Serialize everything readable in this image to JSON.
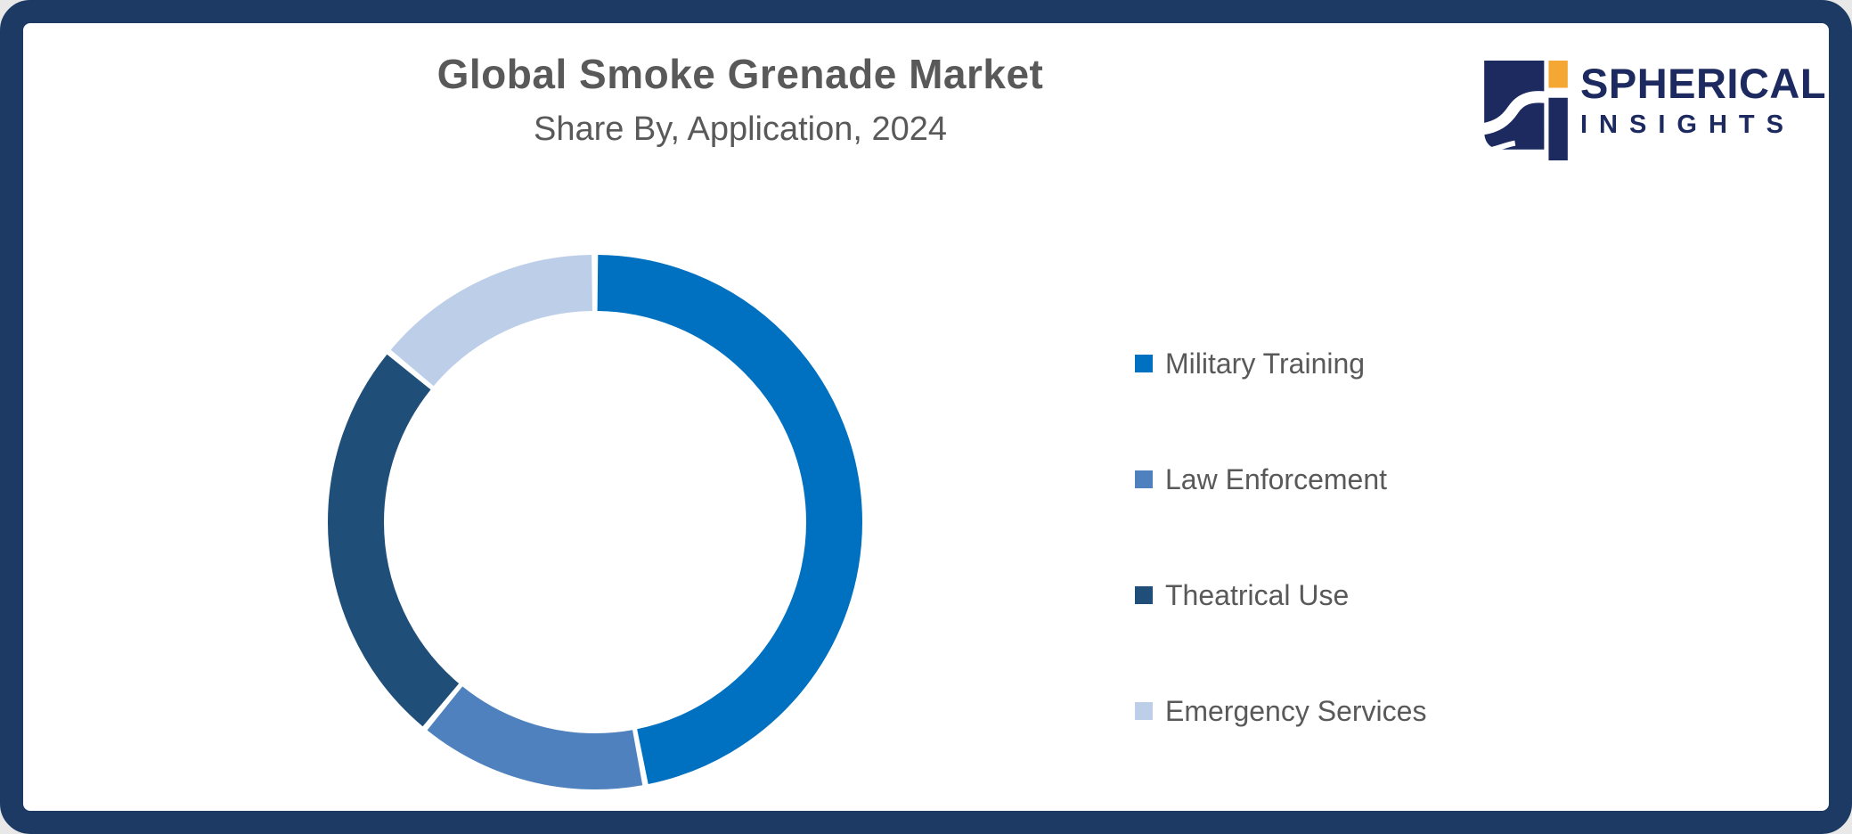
{
  "header": {
    "title": "Global Smoke Grenade Market",
    "subtitle": "Share By, Application, 2024"
  },
  "logo": {
    "name": "SPHERICAL",
    "tagline": "INSIGHTS",
    "navy": "#1c2a60",
    "orange": "#f5a733"
  },
  "colors": {
    "frame_border": "#1c3a63",
    "background": "#ffffff",
    "title_text": "#595959",
    "legend_text": "#595959"
  },
  "chart_data": {
    "type": "pie",
    "subtype": "donut",
    "title": "Global Smoke Grenade Market",
    "subtitle": "Share By, Application, 2024",
    "categories": [
      "Military Training",
      "Law Enforcement",
      "Theatrical Use",
      "Emergency Services"
    ],
    "values": [
      47,
      14,
      25,
      14
    ],
    "colors": [
      "#0070C0",
      "#4E81BD",
      "#1F4E79",
      "#BDCFE8"
    ],
    "start_angle_deg": 0,
    "direction": "clockwise",
    "donut_hole_ratio": 0.79,
    "segment_gap_color": "#ffffff",
    "data_labels_shown": false,
    "legend_position": "right"
  },
  "legend": {
    "items": [
      {
        "label": "Military Training",
        "color": "#0070C0"
      },
      {
        "label": "Law Enforcement",
        "color": "#4E81BD"
      },
      {
        "label": "Theatrical Use",
        "color": "#1F4E79"
      },
      {
        "label": "Emergency Services",
        "color": "#BDCFE8"
      }
    ]
  }
}
